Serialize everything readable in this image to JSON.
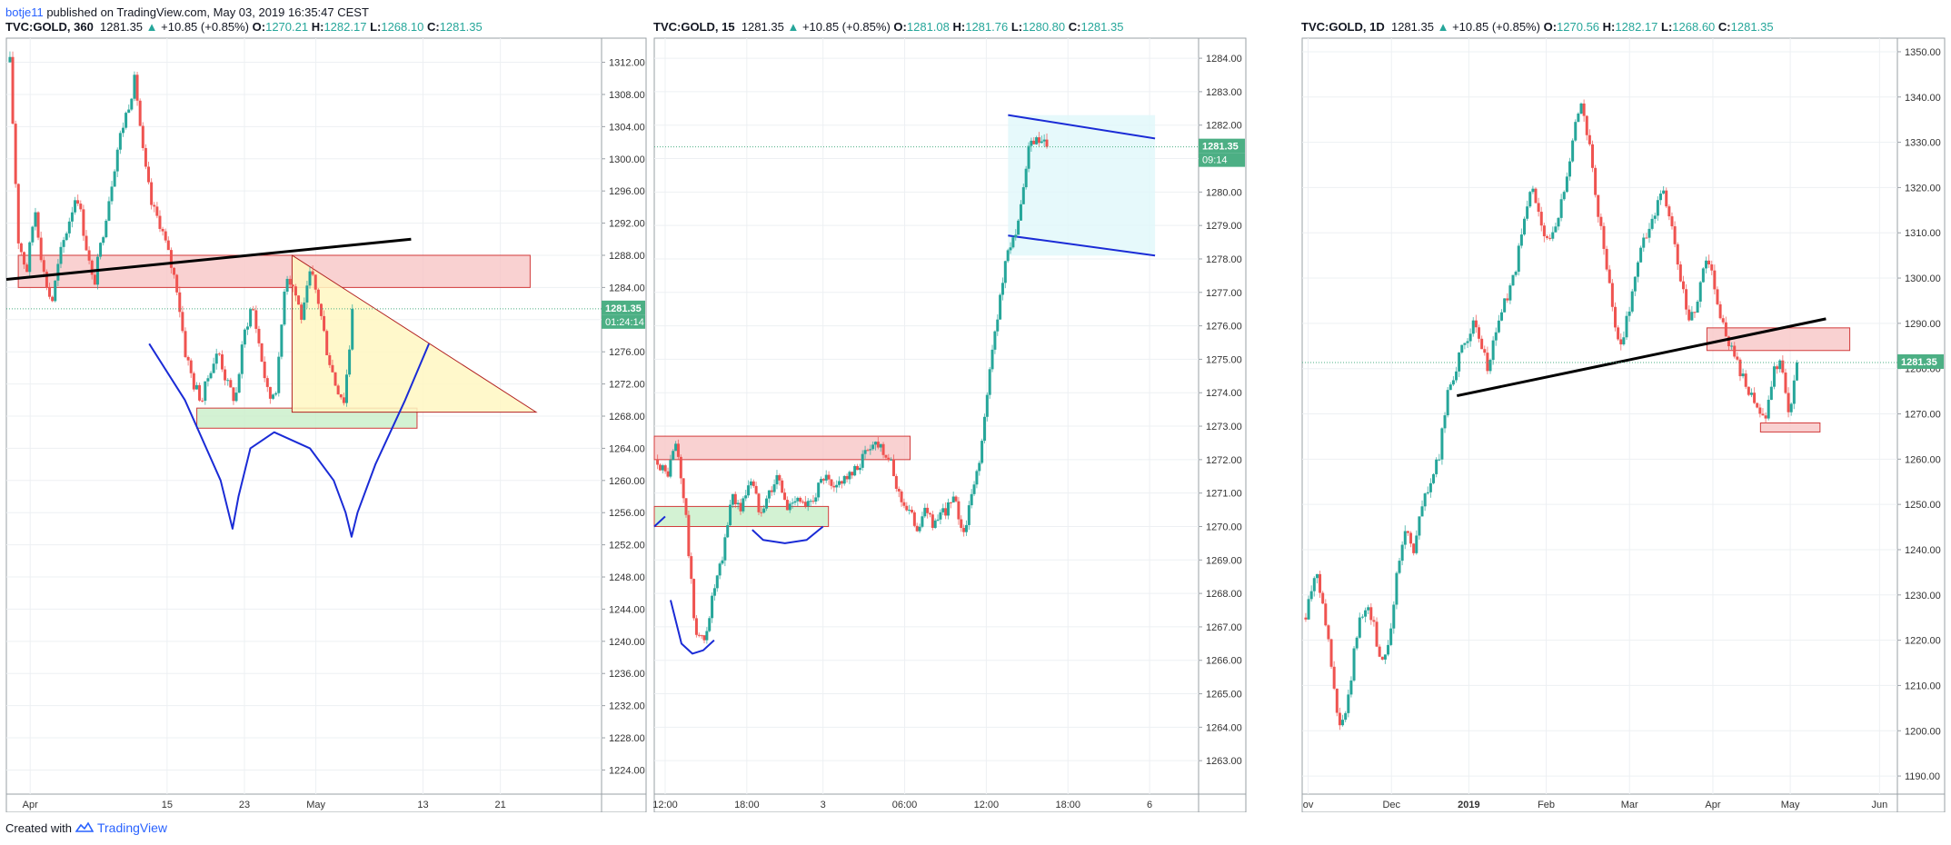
{
  "header": {
    "user": "botje11",
    "text": "published on TradingView.com, May 03, 2019 16:35:47 CEST"
  },
  "footer": {
    "created": "Created with",
    "brand": "TradingView"
  },
  "colors": {
    "up": "#26a69a",
    "down": "#ef5350",
    "grid": "#edf0f3",
    "zone_red": "#f8c6c6",
    "zone_green": "#c8efc8",
    "channel": "#e0f7fa",
    "triangle": "#fff7c2",
    "drawing_blue": "#1a2bd6",
    "trend_black": "#000000",
    "price_tag": "#4caf84"
  },
  "chart_data": [
    {
      "type": "candlestick",
      "symbol": "TVC:GOLD, 360",
      "last": "1281.35",
      "change": "+10.85 (+0.85%)",
      "open": "1270.21",
      "high": "1282.17",
      "low": "1268.10",
      "close": "1281.35",
      "price_label": "1281.35",
      "countdown": "01:24:14",
      "yticks": [
        "1312.00",
        "1308.00",
        "1304.00",
        "1300.00",
        "1296.00",
        "1292.00",
        "1288.00",
        "1284.00",
        "1280.00",
        "1276.00",
        "1272.00",
        "1268.00",
        "1264.00",
        "1260.00",
        "1256.00",
        "1252.00",
        "1248.00",
        "1244.00",
        "1240.00",
        "1236.00",
        "1232.00",
        "1228.00",
        "1224.00"
      ],
      "ylim": [
        1221,
        1315
      ],
      "xticks": [
        "Apr",
        "15",
        "23",
        "May",
        "13",
        "21"
      ],
      "xlim": [
        0,
        100
      ],
      "xtick_pos": [
        4,
        27,
        40,
        52,
        70,
        83
      ],
      "candles_x_end": 58,
      "path": [
        1312,
        1290,
        1286,
        1294,
        1286,
        1282,
        1288,
        1292,
        1296,
        1290,
        1284,
        1290,
        1296,
        1302,
        1306,
        1310,
        1300,
        1294,
        1292,
        1288,
        1284,
        1276,
        1272,
        1270,
        1274,
        1276,
        1272,
        1270,
        1278,
        1282,
        1276,
        1270,
        1272,
        1286,
        1284,
        1280,
        1286,
        1282,
        1276,
        1272,
        1270,
        1280
      ],
      "zones": [
        {
          "kind": "red",
          "x0": 2,
          "x1": 88,
          "y0": 1284,
          "y1": 1288
        },
        {
          "kind": "green",
          "x0": 32,
          "x1": 69,
          "y0": 1266.5,
          "y1": 1269
        }
      ],
      "triangle": [
        [
          48,
          1288
        ],
        [
          89,
          1268.5
        ],
        [
          48,
          1268.5
        ]
      ],
      "trendline": [
        [
          0,
          1285
        ],
        [
          68,
          1290
        ]
      ],
      "drawings": [
        [
          [
            24,
            1277
          ],
          [
            30,
            1270
          ],
          [
            36,
            1260
          ],
          [
            38,
            1254
          ],
          [
            39,
            1258
          ],
          [
            41,
            1264
          ],
          [
            45,
            1266
          ],
          [
            51,
            1264
          ],
          [
            55,
            1260
          ],
          [
            57,
            1256
          ],
          [
            58,
            1253
          ],
          [
            59,
            1256
          ],
          [
            62,
            1262
          ],
          [
            67,
            1270
          ],
          [
            71,
            1277
          ]
        ]
      ],
      "current": 1281.35
    },
    {
      "type": "candlestick",
      "symbol": "TVC:GOLD, 15",
      "last": "1281.35",
      "change": "+10.85 (+0.85%)",
      "open": "1281.08",
      "high": "1281.76",
      "low": "1280.80",
      "close": "1281.35",
      "price_label": "1281.35",
      "countdown": "09:14",
      "yticks": [
        "1284.00",
        "1283.00",
        "1282.00",
        "1281.00",
        "1280.00",
        "1279.00",
        "1278.00",
        "1277.00",
        "1276.00",
        "1275.00",
        "1274.00",
        "1273.00",
        "1272.00",
        "1271.00",
        "1270.00",
        "1269.00",
        "1268.00",
        "1267.00",
        "1266.00",
        "1265.00",
        "1264.00",
        "1263.00"
      ],
      "ylim": [
        1262,
        1284.6
      ],
      "xticks": [
        "12:00",
        "18:00",
        "3",
        "06:00",
        "12:00",
        "18:00",
        "6"
      ],
      "xlim": [
        0,
        100
      ],
      "xtick_pos": [
        2,
        17,
        31,
        46,
        61,
        76,
        91
      ],
      "candles_x_end": 72,
      "path": [
        1272,
        1271.5,
        1272.5,
        1270.5,
        1267,
        1266.5,
        1268,
        1269,
        1271,
        1270.5,
        1271.5,
        1270.5,
        1271,
        1271.5,
        1270.5,
        1271,
        1270.5,
        1271,
        1271.5,
        1271,
        1271.5,
        1271.5,
        1272,
        1272.5,
        1272.5,
        1272,
        1271,
        1270.5,
        1270,
        1270.5,
        1270,
        1270.5,
        1270.8,
        1269.8,
        1271,
        1272.5,
        1275,
        1277,
        1278.5,
        1279,
        1281.3,
        1281.5,
        1281.4
      ],
      "zones": [
        {
          "kind": "red",
          "x0": 0,
          "x1": 47,
          "y0": 1272,
          "y1": 1272.7
        },
        {
          "kind": "green",
          "x0": 0,
          "x1": 32,
          "y0": 1270,
          "y1": 1270.6
        }
      ],
      "channel": {
        "x0": 65,
        "x1": 92,
        "top": [
          1282.3,
          1281.6
        ],
        "bottom": [
          1278.7,
          1278.1
        ]
      },
      "drawings": [
        [
          [
            0,
            1270
          ],
          [
            2,
            1270.3
          ]
        ],
        [
          [
            3,
            1267.8
          ],
          [
            5,
            1266.5
          ],
          [
            7,
            1266.2
          ],
          [
            9,
            1266.3
          ],
          [
            11,
            1266.6
          ]
        ],
        [
          [
            18,
            1269.9
          ],
          [
            20,
            1269.6
          ],
          [
            24,
            1269.5
          ],
          [
            28,
            1269.6
          ],
          [
            31,
            1270
          ]
        ]
      ],
      "current": 1281.35
    },
    {
      "type": "candlestick",
      "symbol": "TVC:GOLD, 1D",
      "last": "1281.35",
      "change": "+10.85 (+0.85%)",
      "open": "1270.56",
      "high": "1282.17",
      "low": "1268.60",
      "close": "1281.35",
      "price_label": "1281.35",
      "yticks": [
        "1350.00",
        "1340.00",
        "1330.00",
        "1320.00",
        "1310.00",
        "1300.00",
        "1290.00",
        "1280.00",
        "1270.00",
        "1260.00",
        "1250.00",
        "1240.00",
        "1230.00",
        "1220.00",
        "1210.00",
        "1200.00",
        "1190.00"
      ],
      "ylim": [
        1186,
        1353
      ],
      "xticks": [
        "ov",
        "Dec",
        "2019",
        "Feb",
        "Mar",
        "Apr",
        "May",
        "Jun"
      ],
      "xlim": [
        0,
        100
      ],
      "xtick_pos": [
        1,
        15,
        28,
        41,
        55,
        69,
        82,
        97
      ],
      "candles_x_end": 83,
      "path": [
        1225,
        1235,
        1230,
        1215,
        1200,
        1205,
        1220,
        1228,
        1225,
        1215,
        1220,
        1235,
        1245,
        1240,
        1250,
        1255,
        1260,
        1275,
        1280,
        1285,
        1290,
        1285,
        1280,
        1290,
        1295,
        1300,
        1310,
        1320,
        1315,
        1308,
        1310,
        1320,
        1330,
        1340,
        1330,
        1315,
        1305,
        1290,
        1285,
        1295,
        1305,
        1310,
        1315,
        1320,
        1310,
        1300,
        1290,
        1295,
        1305,
        1300,
        1290,
        1285,
        1280,
        1275,
        1272,
        1268,
        1278,
        1283,
        1270,
        1281
      ],
      "zones": [
        {
          "kind": "red",
          "x0": 68,
          "x1": 92,
          "y0": 1284,
          "y1": 1289
        },
        {
          "kind": "red",
          "x0": 77,
          "x1": 87,
          "y0": 1266,
          "y1": 1268
        }
      ],
      "trendline": [
        [
          26,
          1274
        ],
        [
          88,
          1291
        ]
      ],
      "current": 1281.35
    }
  ]
}
